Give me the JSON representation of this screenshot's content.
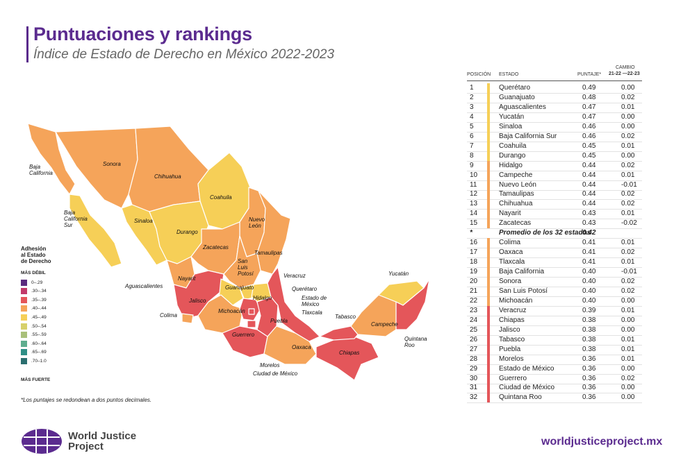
{
  "header": {
    "title": "Puntuaciones y rankings",
    "subtitle": "Índice de Estado de Derecho en México 2022-2023"
  },
  "table": {
    "headers": {
      "position": "POSICIÓN",
      "state": "ESTADO",
      "score": "PUNTAJE*",
      "change_line1": "CAMBIO",
      "change_line2": "21-22 —22-23"
    },
    "rows": [
      {
        "rank": "1",
        "state": "Querétaro",
        "score": "0.49",
        "change": "0.00",
        "color": "#f6cf57"
      },
      {
        "rank": "2",
        "state": "Guanajuato",
        "score": "0.48",
        "change": "0.02",
        "color": "#f6cf57"
      },
      {
        "rank": "3",
        "state": "Aguascalientes",
        "score": "0.47",
        "change": "0.01",
        "color": "#f6cf57"
      },
      {
        "rank": "4",
        "state": "Yucatán",
        "score": "0.47",
        "change": "0.00",
        "color": "#f6cf57"
      },
      {
        "rank": "5",
        "state": "Sinaloa",
        "score": "0.46",
        "change": "0.00",
        "color": "#f6cf57"
      },
      {
        "rank": "6",
        "state": "Baja California Sur",
        "score": "0.46",
        "change": "0.02",
        "color": "#f6cf57"
      },
      {
        "rank": "7",
        "state": "Coahuila",
        "score": "0.45",
        "change": "0.01",
        "color": "#f6cf57"
      },
      {
        "rank": "8",
        "state": "Durango",
        "score": "0.45",
        "change": "0.00",
        "color": "#f6cf57"
      },
      {
        "rank": "9",
        "state": "Hidalgo",
        "score": "0.44",
        "change": "0.02",
        "color": "#f5a45a"
      },
      {
        "rank": "10",
        "state": "Campeche",
        "score": "0.44",
        "change": "0.01",
        "color": "#f5a45a"
      },
      {
        "rank": "11",
        "state": "Nuevo León",
        "score": "0.44",
        "change": "-0.01",
        "color": "#f5a45a"
      },
      {
        "rank": "12",
        "state": "Tamaulipas",
        "score": "0.44",
        "change": "0.02",
        "color": "#f5a45a"
      },
      {
        "rank": "13",
        "state": "Chihuahua",
        "score": "0.44",
        "change": "0.02",
        "color": "#f5a45a"
      },
      {
        "rank": "14",
        "state": "Nayarit",
        "score": "0.43",
        "change": "0.01",
        "color": "#f5a45a"
      },
      {
        "rank": "15",
        "state": "Zacatecas",
        "score": "0.43",
        "change": "-0.02",
        "color": "#f5a45a"
      },
      {
        "rank": "*",
        "state": "Promedio de los 32 estados",
        "score": "0.42",
        "change": "",
        "color": "",
        "avg": true
      },
      {
        "rank": "16",
        "state": "Colima",
        "score": "0.41",
        "change": "0.01",
        "color": "#f5a45a"
      },
      {
        "rank": "17",
        "state": "Oaxaca",
        "score": "0.41",
        "change": "0.02",
        "color": "#f5a45a"
      },
      {
        "rank": "18",
        "state": "Tlaxcala",
        "score": "0.41",
        "change": "0.01",
        "color": "#f5a45a"
      },
      {
        "rank": "19",
        "state": "Baja California",
        "score": "0.40",
        "change": "-0.01",
        "color": "#f5a45a"
      },
      {
        "rank": "20",
        "state": "Sonora",
        "score": "0.40",
        "change": "0.02",
        "color": "#f5a45a"
      },
      {
        "rank": "21",
        "state": "San Luis Potosí",
        "score": "0.40",
        "change": "0.02",
        "color": "#f5a45a"
      },
      {
        "rank": "22",
        "state": "Michoacán",
        "score": "0.40",
        "change": "0.00",
        "color": "#f5a45a"
      },
      {
        "rank": "23",
        "state": "Veracruz",
        "score": "0.39",
        "change": "0.01",
        "color": "#e4565a"
      },
      {
        "rank": "24",
        "state": "Chiapas",
        "score": "0.38",
        "change": "0.00",
        "color": "#e4565a"
      },
      {
        "rank": "25",
        "state": "Jalisco",
        "score": "0.38",
        "change": "0.00",
        "color": "#e4565a"
      },
      {
        "rank": "26",
        "state": "Tabasco",
        "score": "0.38",
        "change": "0.01",
        "color": "#e4565a"
      },
      {
        "rank": "27",
        "state": "Puebla",
        "score": "0.38",
        "change": "0.01",
        "color": "#e4565a"
      },
      {
        "rank": "28",
        "state": "Morelos",
        "score": "0.36",
        "change": "0.01",
        "color": "#e4565a"
      },
      {
        "rank": "29",
        "state": "Estado de México",
        "score": "0.36",
        "change": "0.00",
        "color": "#e4565a"
      },
      {
        "rank": "30",
        "state": "Guerrero",
        "score": "0.36",
        "change": "0.02",
        "color": "#e4565a"
      },
      {
        "rank": "31",
        "state": "Ciudad de México",
        "score": "0.36",
        "change": "0.00",
        "color": "#e4565a"
      },
      {
        "rank": "32",
        "state": "Quintana Roo",
        "score": "0.36",
        "change": "0.00",
        "color": "#e4565a"
      }
    ]
  },
  "legend": {
    "title_lines": [
      "Adhesión",
      "al Estado",
      "de Derecho"
    ],
    "weak_label": "MÁS DÉBIL",
    "strong_label": "MÁS FUERTE",
    "items": [
      {
        "label": "0–.29",
        "color": "#5b2b7e"
      },
      {
        "label": ".30–.34",
        "color": "#c23a6a"
      },
      {
        "label": ".35–.39",
        "color": "#e4565a"
      },
      {
        "label": ".40–.44",
        "color": "#f5a45a"
      },
      {
        "label": ".45–.49",
        "color": "#f6cf57"
      },
      {
        "label": ".50–.54",
        "color": "#d7d06a"
      },
      {
        "label": ".55–.59",
        "color": "#a9c07a"
      },
      {
        "label": ".60–.64",
        "color": "#5fae8f"
      },
      {
        "label": ".65–.69",
        "color": "#2f8f87"
      },
      {
        "label": ".70–1.0",
        "color": "#2b6f70"
      }
    ]
  },
  "map_labels": [
    "Baja California",
    "Sonora",
    "Chihuahua",
    "Coahuila",
    "Baja California Sur",
    "Sinaloa",
    "Durango",
    "Nuevo León",
    "Zacatecas",
    "Tamaulipas",
    "San Luis Potosí",
    "Nayarit",
    "Aguascalientes",
    "Guanajuato",
    "Jalisco",
    "Querétaro",
    "Hidalgo",
    "Veracruz",
    "Estado de México",
    "Tlaxcala",
    "Colima",
    "Michoacán",
    "Puebla",
    "Guerrero",
    "Morelos",
    "Ciudad de México",
    "Oaxaca",
    "Tabasco",
    "Chiapas",
    "Campeche",
    "Yucatán",
    "Quintana Roo"
  ],
  "footnote": "*Los puntajes se redondean a dos puntos decimales.",
  "footer": {
    "org_line1": "World Justice",
    "org_line2": "Project",
    "url": "worldjusticeproject.mx"
  },
  "colors": {
    "brand": "#5b2b8f",
    "high": "#f6cf57",
    "mid": "#f5a45a",
    "low": "#e4565a"
  }
}
